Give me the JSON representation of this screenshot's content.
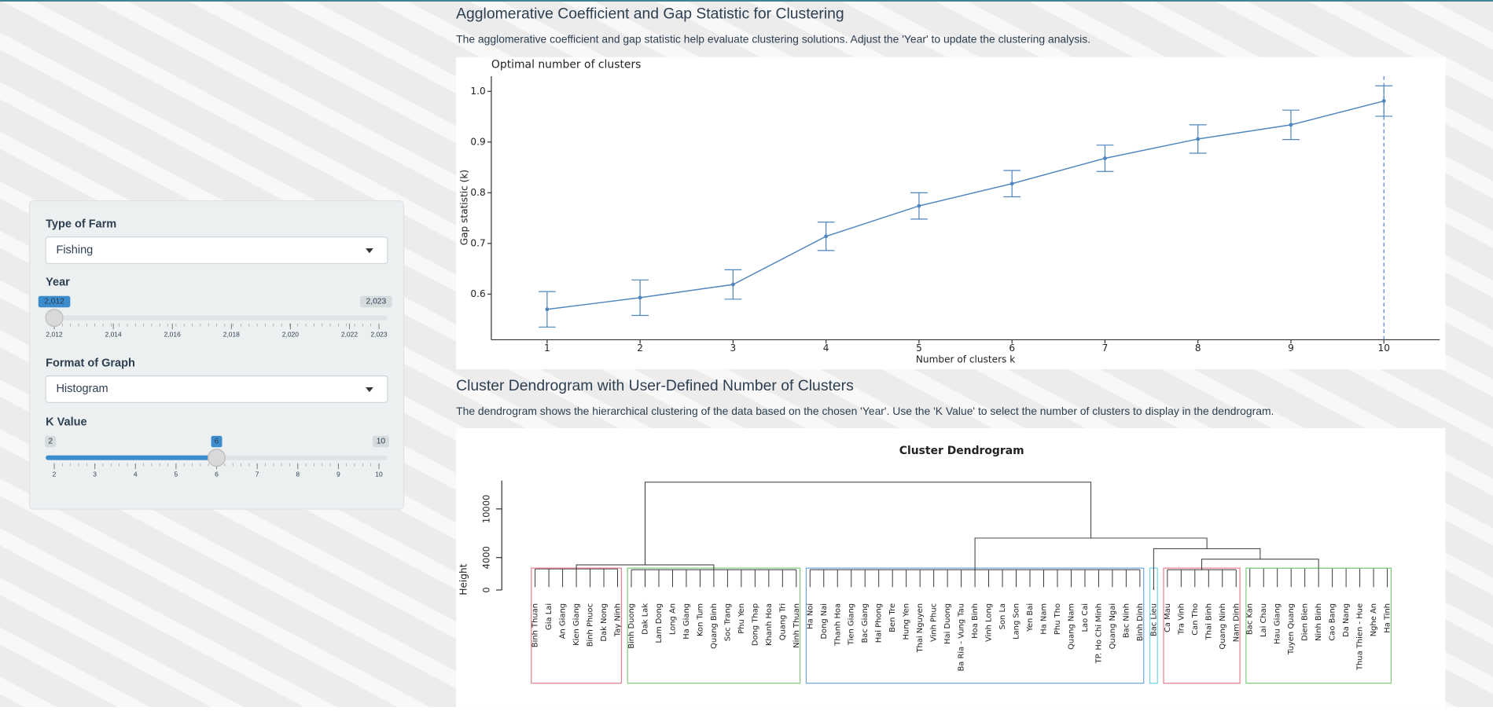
{
  "sidebar": {
    "farm_type": {
      "label": "Type of Farm",
      "value": "Fishing"
    },
    "year": {
      "label": "Year",
      "min": {
        "value": 2012,
        "label": "2,012"
      },
      "max": {
        "value": 2023,
        "label": "2,023"
      },
      "value": {
        "value": 2012,
        "label": "2,012"
      },
      "ticks": [
        {
          "value": 2012,
          "label": "2,012"
        },
        {
          "value": 2014,
          "label": "2,014"
        },
        {
          "value": 2016,
          "label": "2,016"
        },
        {
          "value": 2018,
          "label": "2,018"
        },
        {
          "value": 2020,
          "label": "2,020"
        },
        {
          "value": 2022,
          "label": "2,022"
        },
        {
          "value": 2023,
          "label": "2,023"
        }
      ]
    },
    "graph_format": {
      "label": "Format of Graph",
      "value": "Histogram"
    },
    "k_value": {
      "label": "K Value",
      "min": 2,
      "max": 10,
      "value": 6,
      "ticks": [
        2,
        3,
        4,
        5,
        6,
        7,
        8,
        9,
        10
      ]
    }
  },
  "sections": [
    {
      "title": "Agglomerative Coefficient and Gap Statistic for Clustering",
      "description": "The agglomerative coefficient and gap statistic help evaluate clustering solutions. Adjust the 'Year' to update the clustering analysis."
    },
    {
      "title": "Cluster Dendrogram with User-Defined Number of Clusters",
      "description": "The dendrogram shows the hierarchical clustering of the data based on the chosen 'Year'. Use the 'K Value' to select the number of clusters to display in the dendrogram."
    }
  ],
  "chart_data": [
    {
      "type": "line",
      "title": "Optimal number of clusters",
      "x_label": "Number of clusters k",
      "y_label": "Gap statistic (k)",
      "x": [
        1,
        2,
        3,
        4,
        5,
        6,
        7,
        8,
        9,
        10
      ],
      "series": [
        {
          "color": "#4f86bd",
          "values": [
            0.57,
            0.593,
            0.619,
            0.714,
            0.774,
            0.818,
            0.868,
            0.906,
            0.934,
            0.981
          ],
          "errors": [
            0.035,
            0.035,
            0.029,
            0.028,
            0.026,
            0.026,
            0.026,
            0.028,
            0.029,
            0.03
          ]
        }
      ],
      "xlim": [
        0.4,
        10.6
      ],
      "ylim": [
        0.51,
        1.03
      ],
      "xticks": [
        1,
        2,
        3,
        4,
        5,
        6,
        7,
        8,
        9,
        10
      ],
      "yticks": [
        0.6,
        0.7,
        0.8,
        0.9,
        {
          "value": 1,
          "label": "1.0"
        }
      ],
      "optimal_k": 10
    },
    {
      "type": "dendrogram",
      "title": "Cluster Dendrogram",
      "y_label": "Height",
      "ylim": [
        0,
        13500
      ],
      "yticks": [
        0,
        4000,
        10000
      ],
      "clusters": [
        {
          "color": "#e8808e",
          "height": 2600,
          "leaves": [
            "Binh Thuan",
            "Gia Lai",
            "An Giang",
            "Kien Giang",
            "Binh Phuoc",
            "Dak Nong",
            "Tay Ninh"
          ]
        },
        {
          "color": "#7ccc7c",
          "height": 2500,
          "leaves": [
            "Binh Duong",
            "Dak Lak",
            "Lam Dong",
            "Long An",
            "Ha Giang",
            "Kon Tum",
            "Quang Binh",
            "Soc Trang",
            "Phu Yen",
            "Dong Thap",
            "Khanh Hoa",
            "Quang Tri",
            "Ninh Thuan"
          ]
        },
        {
          "color": "#6fa6dc",
          "height": 2500,
          "leaves": [
            "Ha Noi",
            "Dong Nai",
            "Thanh Hoa",
            "Tien Giang",
            "Bac Giang",
            "Hai Phong",
            "Ben Tre",
            "Hung Yen",
            "Thai Nguyen",
            "Vinh Phuc",
            "Hai Duong",
            "Ba Ria - Vung Tau",
            "Hoa Binh",
            "Vinh Long",
            "Son La",
            "Lang Son",
            "Yen Bai",
            "Ha Nam",
            "Phu Tho",
            "Quang Nam",
            "Lao Cai",
            "TP. Ho Chi Minh",
            "Quang Ngai",
            "Bac Ninh",
            "Binh Dinh"
          ]
        },
        {
          "color": "#6fd4e4",
          "height": 0,
          "leaves": [
            "Bac Lieu"
          ]
        },
        {
          "color": "#e8808e",
          "height": 2500,
          "leaves": [
            "Ca Mau",
            "Tra Vinh",
            "Can Tho",
            "Thai Binh",
            "Quang Ninh",
            "Nam Dinh"
          ]
        },
        {
          "color": "#7ccc7c",
          "height": 2700,
          "leaves": [
            "Bac Kan",
            "Lai Chau",
            "Hau Giang",
            "Tuyen Quang",
            "Dien Bien",
            "Ninh Binh",
            "Cao Bang",
            "Da Nang",
            "Thua Thien - Hue",
            "Nghe An",
            "Ha Tinh"
          ]
        }
      ],
      "merges": [
        {
          "children": [
            0,
            1
          ],
          "height": 3100
        },
        {
          "children": [
            4,
            5
          ],
          "height": 3800
        },
        {
          "children": [
            3,
            7
          ],
          "height": 5100
        },
        {
          "children": [
            2,
            8
          ],
          "height": 6400
        },
        {
          "children": [
            6,
            9
          ],
          "height": 13300
        }
      ]
    }
  ]
}
